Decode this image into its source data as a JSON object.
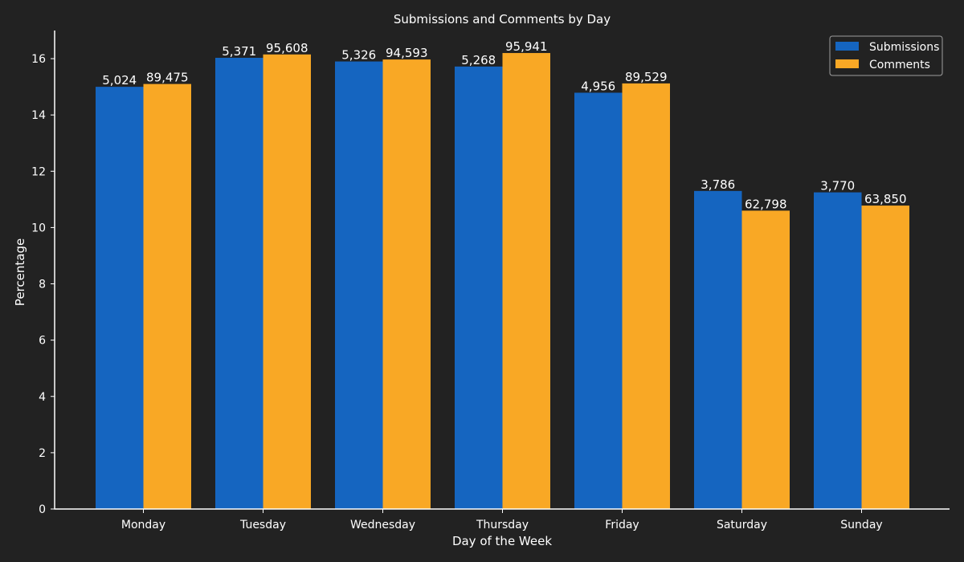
{
  "chart_data": {
    "type": "bar",
    "title": "Submissions and Comments by Day",
    "xlabel": "Day of the Week",
    "ylabel": "Percentage",
    "ylim": [
      0,
      17
    ],
    "yticks": [
      0,
      2,
      4,
      6,
      8,
      10,
      12,
      14,
      16
    ],
    "grid": false,
    "legend_position": "top-right",
    "categories": [
      "Monday",
      "Tuesday",
      "Wednesday",
      "Thursday",
      "Friday",
      "Saturday",
      "Sunday"
    ],
    "series": [
      {
        "name": "Submissions",
        "color": "#1565c0",
        "values": [
          15.0,
          16.03,
          15.9,
          15.72,
          14.79,
          11.3,
          11.25
        ],
        "labels": [
          "5,024",
          "5,371",
          "5,326",
          "5,268",
          "4,956",
          "3,786",
          "3,770"
        ]
      },
      {
        "name": "Comments",
        "color": "#f9a825",
        "values": [
          15.1,
          16.15,
          15.97,
          16.2,
          15.12,
          10.6,
          10.78
        ],
        "labels": [
          "89,475",
          "95,608",
          "94,593",
          "95,941",
          "89,529",
          "62,798",
          "63,850"
        ]
      }
    ]
  }
}
